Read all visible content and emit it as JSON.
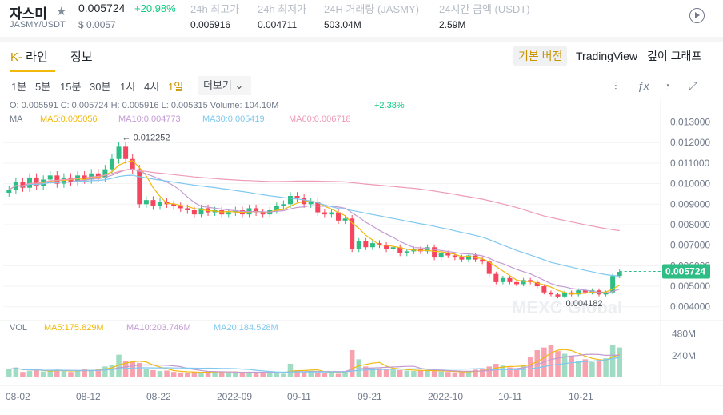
{
  "header": {
    "title": "자스미",
    "pair": "JASMY/USDT",
    "price": "0.005724",
    "change": "+20.98%",
    "price_usd": "$ 0.0057",
    "stats": [
      {
        "key": "24h 최고가",
        "value": "0.005916"
      },
      {
        "key": "24h 최저가",
        "value": "0.004711"
      },
      {
        "key": "24H 거래량 (JASMY)",
        "value": "503.04M"
      },
      {
        "key": "24시간 금액 (USDT)",
        "value": "2.59M"
      }
    ]
  },
  "tabs": {
    "kline_prefix": "K-",
    "kline_label": " 라인",
    "info_label": "정보",
    "views": [
      "기본 버전",
      "TradingView",
      "깊이 그래프"
    ],
    "active_view": "기본 버전"
  },
  "intervals": [
    "1분",
    "5분",
    "15분",
    "30분",
    "1시",
    "4시",
    "1일"
  ],
  "more_label": "더보기",
  "legend": {
    "ohlc": "O: 0.005591   C: 0.005724   H: 0.005916   L: 0.005315   Volume: 104.10M",
    "ohlc_change": "+2.38%",
    "ma_label": "MA",
    "ma5": "MA5:0.005056",
    "ma10": "MA10:0.004773",
    "ma30": "MA30:0.005419",
    "ma60": "MA60:0.006718",
    "vol_label": "VOL",
    "vma5": "MA5:175.829M",
    "vma10": "MA10:203.746M",
    "vma20": "MA20:184.528M"
  },
  "colors": {
    "up": "#2ebd85",
    "down": "#f6465d",
    "ma5": "#f0b90b",
    "ma10": "#c39bd3",
    "ma30": "#7ec8f0",
    "ma60": "#ee9ab8",
    "accent": "#c99400"
  },
  "chart_data": {
    "type": "candlestick",
    "y_ticks": [
      "0.013000",
      "0.012000",
      "0.011000",
      "0.010000",
      "0.009000",
      "0.008000",
      "0.007000",
      "0.006000",
      "0.005000",
      "0.004000"
    ],
    "y_range": [
      0.0036,
      0.0138
    ],
    "x_labels": [
      "08-02",
      "08-12",
      "08-22",
      "2022-09",
      "09-11",
      "09-21",
      "2022-10",
      "10-11",
      "10-21"
    ],
    "current_price": "0.005724",
    "max_marker": "0.012252",
    "min_marker": "0.004182",
    "vol_ticks": [
      "480M",
      "240M"
    ],
    "closes": [
      0.0097,
      0.0101,
      0.0098,
      0.0103,
      0.0099,
      0.0102,
      0.0104,
      0.01,
      0.0103,
      0.0101,
      0.0104,
      0.0102,
      0.0105,
      0.0103,
      0.0107,
      0.0112,
      0.0118,
      0.0112,
      0.0107,
      0.009,
      0.0092,
      0.0089,
      0.0091,
      0.009,
      0.0089,
      0.0088,
      0.0087,
      0.0085,
      0.0088,
      0.0086,
      0.0087,
      0.0085,
      0.0086,
      0.0087,
      0.0085,
      0.0088,
      0.0086,
      0.0085,
      0.0087,
      0.0089,
      0.009,
      0.0094,
      0.0093,
      0.009,
      0.0091,
      0.0086,
      0.0085,
      0.0086,
      0.0082,
      0.0083,
      0.0068,
      0.0072,
      0.0069,
      0.0071,
      0.007,
      0.0068,
      0.0069,
      0.0066,
      0.0067,
      0.0068,
      0.0067,
      0.0069,
      0.0064,
      0.0066,
      0.0065,
      0.0064,
      0.0063,
      0.0065,
      0.0063,
      0.0062,
      0.0056,
      0.0052,
      0.0054,
      0.0052,
      0.0051,
      0.0053,
      0.0052,
      0.005,
      0.0047,
      0.0046,
      0.0045,
      0.0047,
      0.0046,
      0.0048,
      0.0047,
      0.0048,
      0.0046,
      0.0047,
      0.0055,
      0.0057
    ],
    "volumes": [
      90,
      110,
      60,
      70,
      80,
      65,
      75,
      85,
      70,
      60,
      75,
      90,
      80,
      95,
      120,
      140,
      250,
      180,
      170,
      160,
      90,
      80,
      70,
      75,
      60,
      55,
      50,
      60,
      55,
      70,
      65,
      60,
      55,
      50,
      45,
      60,
      55,
      50,
      45,
      50,
      40,
      150,
      80,
      60,
      70,
      55,
      50,
      45,
      40,
      55,
      300,
      200,
      120,
      110,
      100,
      90,
      85,
      80,
      75,
      70,
      75,
      80,
      70,
      65,
      60,
      55,
      60,
      70,
      85,
      90,
      120,
      150,
      130,
      110,
      100,
      140,
      220,
      300,
      330,
      360,
      290,
      260,
      240,
      180,
      200,
      170,
      190,
      210,
      360,
      330
    ]
  }
}
